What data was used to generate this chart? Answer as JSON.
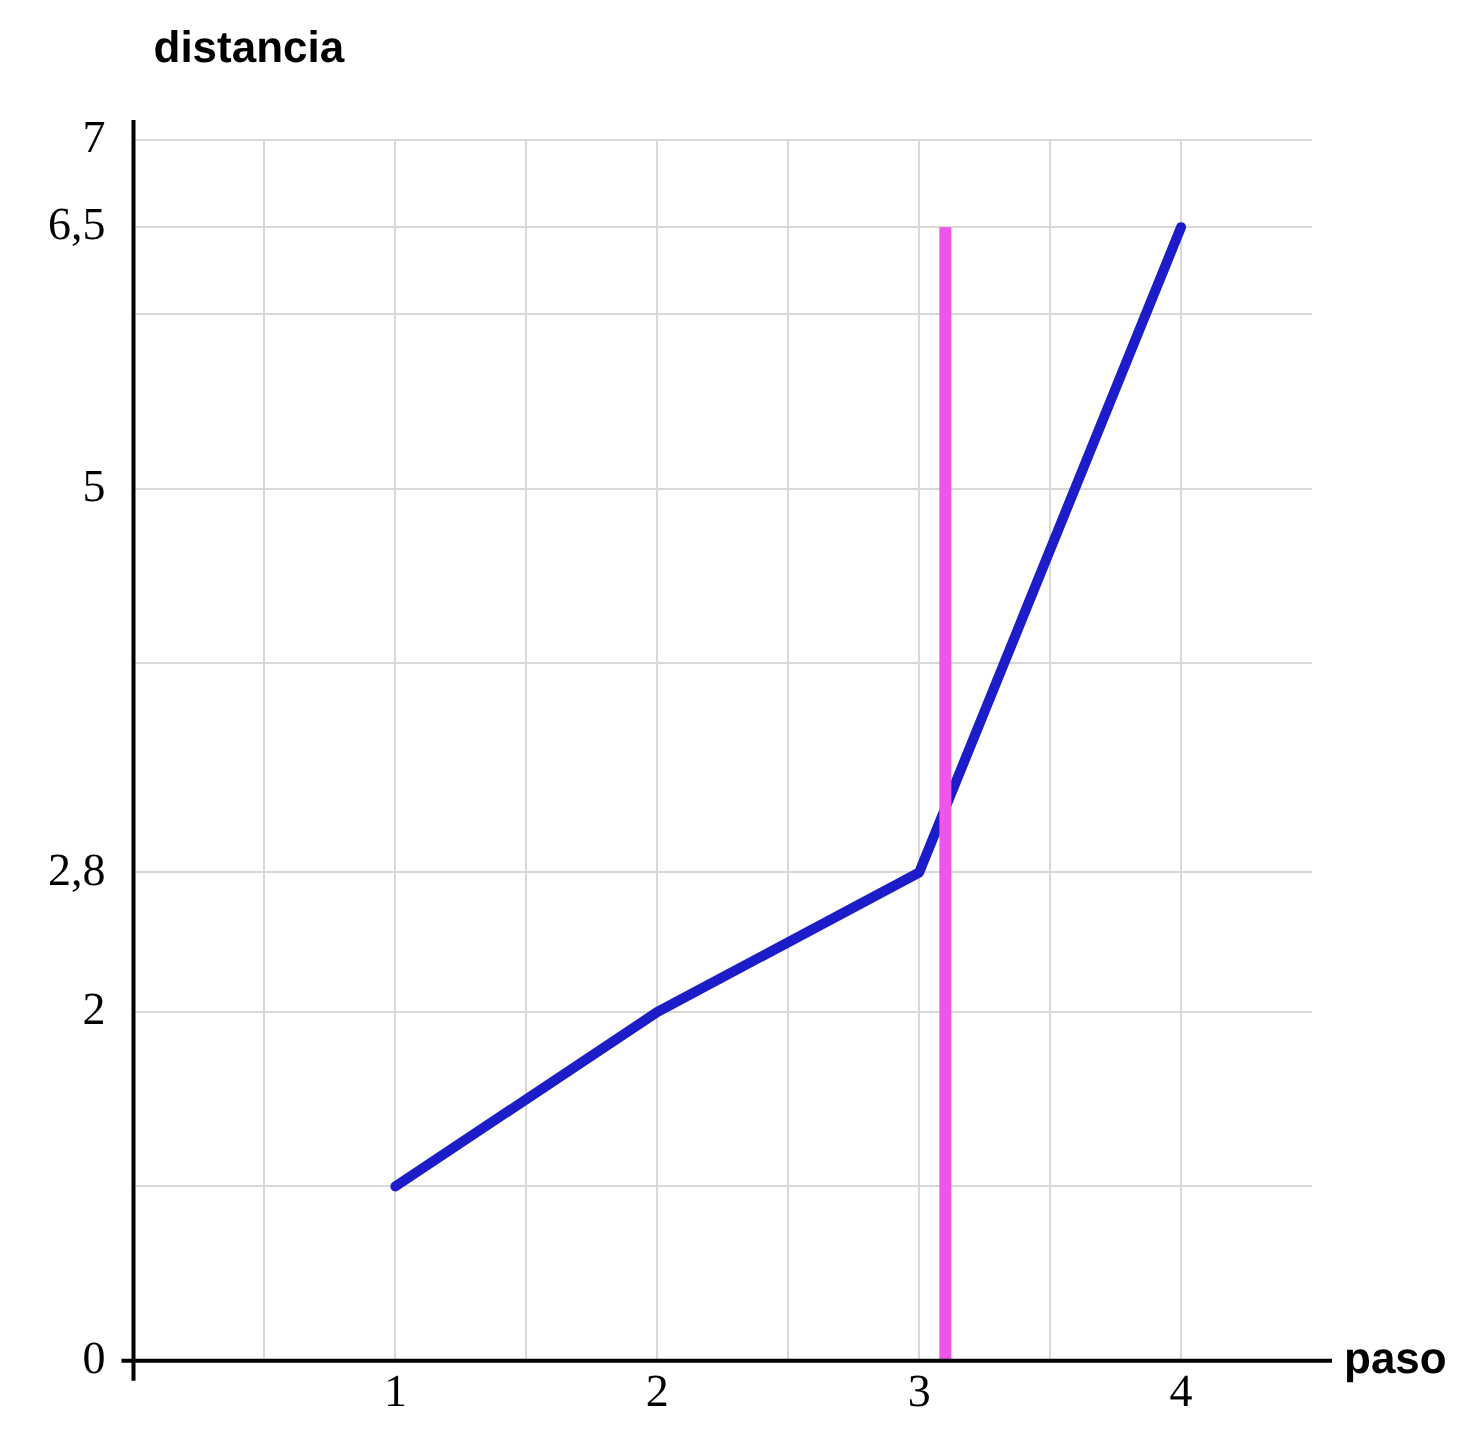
{
  "chart_data": {
    "type": "line",
    "xlabel": "paso",
    "ylabel": "distancia",
    "x": [
      1,
      2,
      3,
      4
    ],
    "series": [
      {
        "color": "#1c1cc8",
        "values": [
          1,
          2,
          2.8,
          6.5
        ]
      }
    ],
    "xlim": [
      0,
      4.5
    ],
    "ylim": [
      0,
      7
    ],
    "xticks": [
      {
        "value": 0.5,
        "label": null
      },
      1,
      {
        "value": 1.5,
        "label": null
      },
      2,
      {
        "value": 2.5,
        "label": null
      },
      3,
      {
        "value": 3.5,
        "label": null
      },
      4
    ],
    "yticks": [
      {
        "value": 0,
        "label": "0"
      },
      {
        "value": 1,
        "label": null
      },
      {
        "value": 2,
        "label": "2"
      },
      {
        "value": 2.8,
        "label": "2,8"
      },
      {
        "value": 4,
        "label": null
      },
      {
        "value": 5,
        "label": "5"
      },
      {
        "value": 6,
        "label": null
      },
      {
        "value": 6.5,
        "label": "6,5"
      },
      {
        "value": 7,
        "label": "7"
      }
    ],
    "ref_lines": [
      {
        "axis": "x",
        "value": 3.1,
        "color": "#ee55e8"
      }
    ],
    "grid": true,
    "legend": false,
    "marker": "none",
    "line_style": "solid"
  }
}
